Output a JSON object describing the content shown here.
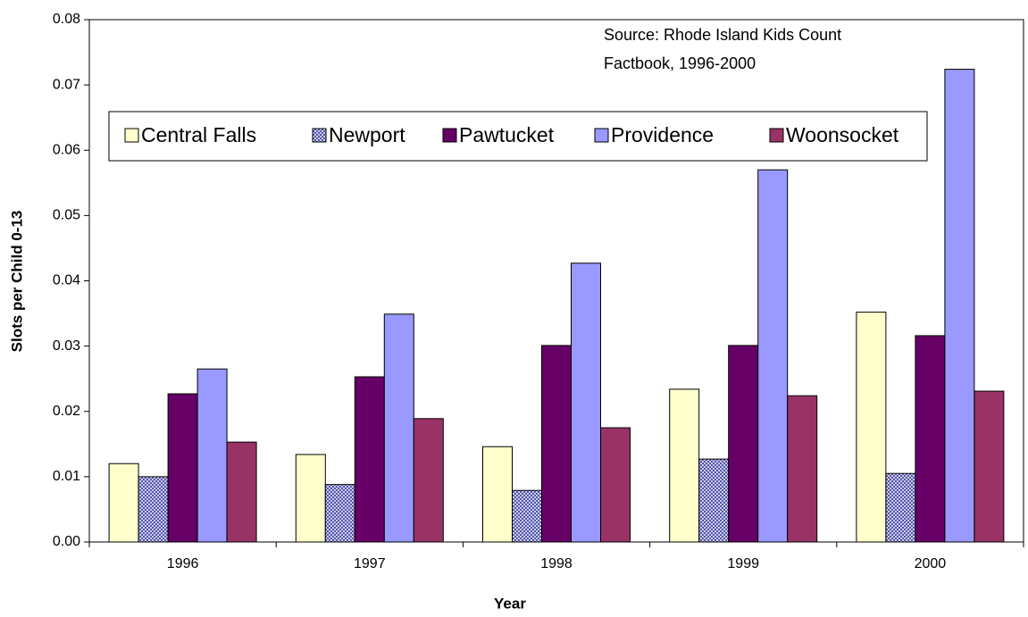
{
  "chart_data": {
    "type": "bar",
    "annotation": [
      "Source: Rhode Island Kids Count",
      "Factbook, 1996-2000"
    ],
    "x_label": "Year",
    "y_label": "Slots per Child 0-13",
    "categories": [
      "1996",
      "1997",
      "1998",
      "1999",
      "2000"
    ],
    "series": [
      {
        "name": "Central Falls",
        "color": "#ffffcc",
        "values": [
          0.012,
          0.0134,
          0.0146,
          0.0234,
          0.0352
        ]
      },
      {
        "name": "Newport",
        "color": "#6666cc",
        "pattern": "dots",
        "values": [
          0.01,
          0.0088,
          0.0079,
          0.0127,
          0.0105
        ]
      },
      {
        "name": "Pawtucket",
        "color": "#660066",
        "values": [
          0.0227,
          0.0253,
          0.0301,
          0.0301,
          0.0316
        ]
      },
      {
        "name": "Providence",
        "color": "#9999ff",
        "values": [
          0.0265,
          0.0349,
          0.0427,
          0.057,
          0.0724
        ]
      },
      {
        "name": "Woonsocket",
        "color": "#993366",
        "values": [
          0.0153,
          0.0189,
          0.0175,
          0.0224,
          0.0231
        ]
      }
    ],
    "ylim": [
      0,
      0.08
    ],
    "yticks": [
      {
        "value": 0,
        "label": "0.00"
      },
      0.01,
      0.02,
      0.03,
      0.04,
      0.05,
      0.06,
      0.07,
      0.08
    ],
    "grid": false,
    "legend": "top-left"
  }
}
